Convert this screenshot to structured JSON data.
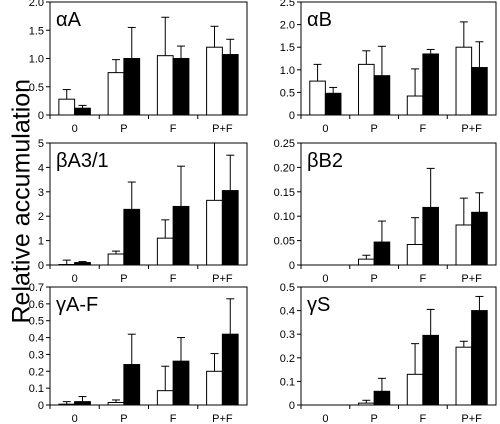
{
  "figure": {
    "ylabel": "Relative accumulation"
  },
  "chart_data": [
    {
      "type": "bar",
      "title": "αA",
      "categories": [
        "0",
        "P",
        "F",
        "P+F"
      ],
      "ylim": [
        0,
        2
      ],
      "yticks": [
        "0",
        "0.5",
        "1.0",
        "1.5",
        "2.0"
      ],
      "series": [
        {
          "color": "#ffffff",
          "values": [
            0.28,
            0.75,
            1.05,
            1.2
          ],
          "errors": [
            0.17,
            0.23,
            0.68,
            0.37
          ]
        },
        {
          "color": "#000000",
          "values": [
            0.12,
            1.0,
            1.0,
            1.07
          ],
          "errors": [
            0.05,
            0.55,
            0.22,
            0.27
          ]
        }
      ]
    },
    {
      "type": "bar",
      "title": "αB",
      "categories": [
        "0",
        "P",
        "F",
        "P+F"
      ],
      "ylim": [
        0,
        2.5
      ],
      "yticks": [
        "0",
        "0.5",
        "1.0",
        "1.5",
        "2.0",
        "2.5"
      ],
      "series": [
        {
          "color": "#ffffff",
          "values": [
            0.75,
            1.12,
            0.42,
            1.5
          ],
          "errors": [
            0.37,
            0.3,
            0.6,
            0.56
          ]
        },
        {
          "color": "#000000",
          "values": [
            0.48,
            0.87,
            1.35,
            1.05
          ],
          "errors": [
            0.13,
            0.65,
            0.1,
            0.57
          ]
        }
      ]
    },
    {
      "type": "bar",
      "title": "βA3/1",
      "categories": [
        "0",
        "P",
        "F",
        "P+F"
      ],
      "ylim": [
        0,
        5
      ],
      "yticks": [
        "0",
        "1",
        "2",
        "3",
        "4",
        "5"
      ],
      "series": [
        {
          "color": "#ffffff",
          "values": [
            0.02,
            0.45,
            1.1,
            2.65
          ],
          "errors": [
            0.18,
            0.12,
            0.75,
            2.35
          ]
        },
        {
          "color": "#000000",
          "values": [
            0.1,
            2.28,
            2.4,
            3.05
          ],
          "errors": [
            0.04,
            1.12,
            1.65,
            1.45
          ]
        }
      ]
    },
    {
      "type": "bar",
      "title": "βB2",
      "categories": [
        "0",
        "P",
        "F",
        "P+F"
      ],
      "ylim": [
        0,
        0.25
      ],
      "yticks": [
        "0",
        "0.05",
        "0.10",
        "0.15",
        "0.20",
        "0.25"
      ],
      "series": [
        {
          "color": "#ffffff",
          "values": [
            0,
            0.012,
            0.042,
            0.082
          ],
          "errors": [
            0,
            0.008,
            0.055,
            0.055
          ]
        },
        {
          "color": "#000000",
          "values": [
            0,
            0.047,
            0.118,
            0.108
          ],
          "errors": [
            0,
            0.043,
            0.08,
            0.04
          ]
        }
      ]
    },
    {
      "type": "bar",
      "title": "γA-F",
      "categories": [
        "0",
        "P",
        "F",
        "P+F"
      ],
      "ylim": [
        0,
        0.7
      ],
      "yticks": [
        "0",
        "0.1",
        "0.2",
        "0.3",
        "0.4",
        "0.5",
        "0.6",
        "0.7"
      ],
      "series": [
        {
          "color": "#ffffff",
          "values": [
            0.005,
            0.015,
            0.085,
            0.2
          ],
          "errors": [
            0.015,
            0.015,
            0.145,
            0.105
          ]
        },
        {
          "color": "#000000",
          "values": [
            0.02,
            0.24,
            0.26,
            0.42
          ],
          "errors": [
            0.03,
            0.18,
            0.14,
            0.21
          ]
        }
      ]
    },
    {
      "type": "bar",
      "title": "γS",
      "categories": [
        "0",
        "P",
        "F",
        "P+F"
      ],
      "ylim": [
        0,
        0.5
      ],
      "yticks": [
        "0",
        "0.1",
        "0.2",
        "0.3",
        "0.4",
        "0.5"
      ],
      "series": [
        {
          "color": "#ffffff",
          "values": [
            0,
            0.008,
            0.13,
            0.245
          ],
          "errors": [
            0,
            0.012,
            0.13,
            0.025
          ]
        },
        {
          "color": "#000000",
          "values": [
            0,
            0.058,
            0.295,
            0.4
          ],
          "errors": [
            0,
            0.055,
            0.11,
            0.06
          ]
        }
      ]
    }
  ]
}
